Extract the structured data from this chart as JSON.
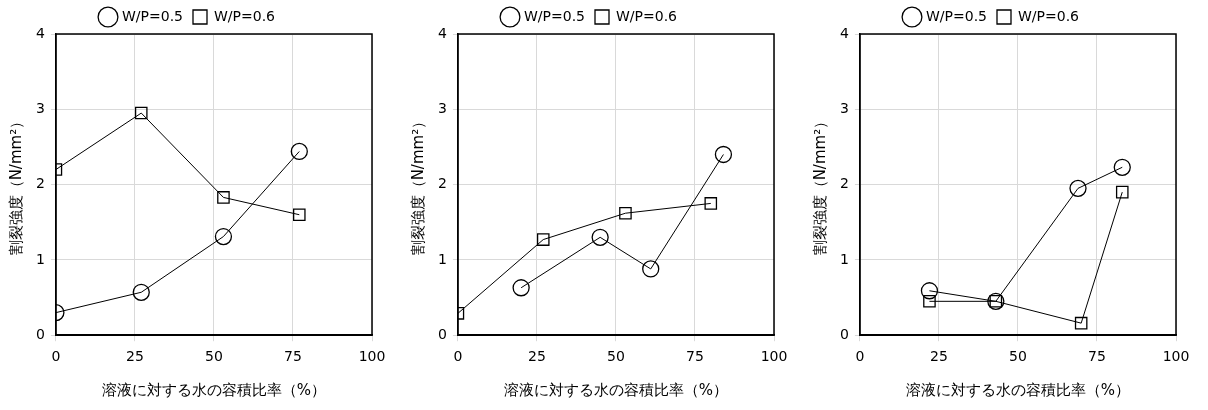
{
  "chart_data": [
    {
      "type": "line",
      "xlabel": "溶液に対する水の容積比率（%）",
      "ylabel": "割裂強度（N/mm²）",
      "xlim": [
        0,
        100
      ],
      "xticks": [
        0,
        25,
        50,
        75,
        100
      ],
      "ylim": [
        0,
        4
      ],
      "yticks": [
        0,
        1,
        2,
        3,
        4
      ],
      "grid": true,
      "legend": "top",
      "series": [
        {
          "name": "W/P=0.5",
          "color": "#000000",
          "marker": "circle",
          "x": [
            0,
            27,
            53,
            77
          ],
          "values": [
            0.3,
            0.57,
            1.31,
            2.44
          ]
        },
        {
          "name": "W/P=0.6",
          "color": "#000000",
          "marker": "square",
          "x": [
            0,
            27,
            53,
            77
          ],
          "values": [
            2.2,
            2.95,
            1.83,
            1.6
          ]
        }
      ]
    },
    {
      "type": "line",
      "xlabel": "溶液に対する水の容積比率（%）",
      "ylabel": "割裂強度（N/mm²）",
      "xlim": [
        0,
        100
      ],
      "xticks": [
        0,
        25,
        50,
        75,
        100
      ],
      "ylim": [
        0,
        4
      ],
      "yticks": [
        0,
        1,
        2,
        3,
        4
      ],
      "grid": true,
      "legend": "top",
      "series": [
        {
          "name": "W/P=0.5",
          "color": "#000000",
          "marker": "circle",
          "x": [
            20,
            45,
            61,
            84
          ],
          "values": [
            0.63,
            1.3,
            0.88,
            2.4
          ]
        },
        {
          "name": "W/P=0.6",
          "color": "#000000",
          "marker": "square",
          "x": [
            0,
            27,
            53,
            80
          ],
          "values": [
            0.29,
            1.27,
            1.62,
            1.75
          ]
        }
      ]
    },
    {
      "type": "line",
      "xlabel": "溶液に対する水の容積比率（%）",
      "ylabel": "割裂強度（N/mm²）",
      "xlim": [
        0,
        100
      ],
      "xticks": [
        0,
        25,
        50,
        75,
        100
      ],
      "ylim": [
        0,
        4
      ],
      "yticks": [
        0,
        1,
        2,
        3,
        4
      ],
      "grid": true,
      "legend": "top",
      "series": [
        {
          "name": "W/P=0.5",
          "color": "#000000",
          "marker": "circle",
          "x": [
            22,
            43,
            69,
            83
          ],
          "values": [
            0.59,
            0.45,
            1.95,
            2.23
          ]
        },
        {
          "name": "W/P=0.6",
          "color": "#000000",
          "marker": "square",
          "x": [
            22,
            43,
            70,
            83
          ],
          "values": [
            0.45,
            0.45,
            0.16,
            1.9
          ]
        }
      ]
    }
  ]
}
